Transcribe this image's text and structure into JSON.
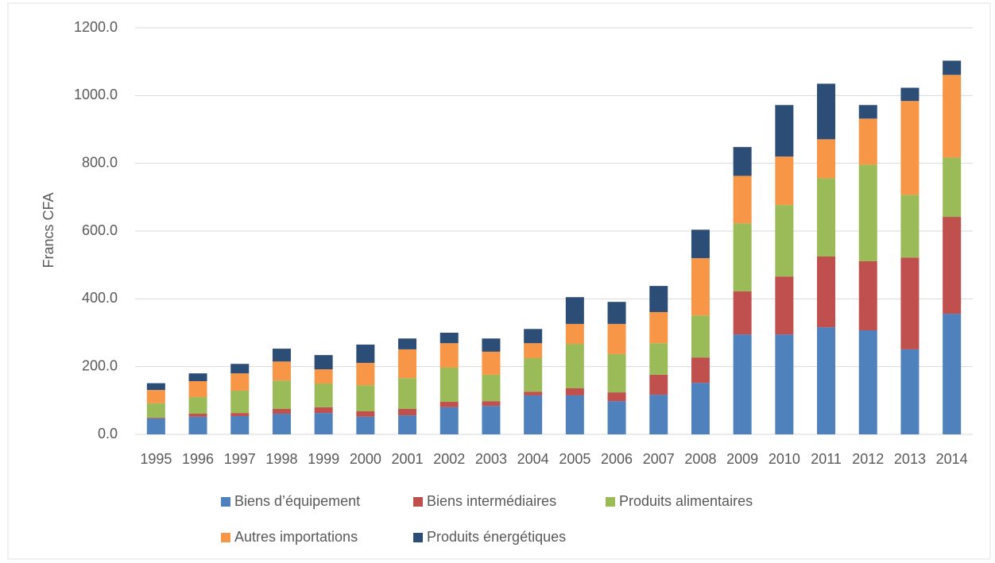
{
  "chart_data": {
    "type": "stacked-bar",
    "y_label": "Francs CFA",
    "categories": [
      "1995",
      "1996",
      "1997",
      "1998",
      "1999",
      "2000",
      "2001",
      "2002",
      "2003",
      "2004",
      "2005",
      "2006",
      "2007",
      "2008",
      "2009",
      "2010",
      "2011",
      "2012",
      "2013",
      "2014"
    ],
    "series": [
      {
        "name": "Biens d’équipement",
        "color": "#4f81bd",
        "values": [
          47,
          52,
          54,
          61,
          63,
          52,
          56,
          80,
          84,
          115,
          115,
          98,
          117,
          152,
          295,
          295,
          316,
          307,
          251,
          356
        ]
      },
      {
        "name": "Biens intermédiaires",
        "color": "#c0504d",
        "values": [
          2,
          9,
          9,
          14,
          17,
          16,
          19,
          16,
          14,
          11,
          21,
          26,
          59,
          75,
          127,
          171,
          209,
          204,
          271,
          286
        ]
      },
      {
        "name": "Produits alimentaires",
        "color": "#9bbb59",
        "values": [
          43,
          49,
          66,
          84,
          70,
          77,
          91,
          101,
          78,
          99,
          131,
          113,
          93,
          124,
          201,
          211,
          231,
          285,
          185,
          175
        ]
      },
      {
        "name": "Autres importations",
        "color": "#f79646",
        "values": [
          39,
          47,
          51,
          56,
          42,
          66,
          85,
          72,
          68,
          44,
          59,
          89,
          92,
          169,
          140,
          143,
          115,
          136,
          277,
          244
        ]
      },
      {
        "name": "Produits énergétiques",
        "color": "#2c4d75",
        "values": [
          20,
          23,
          28,
          38,
          42,
          54,
          32,
          31,
          39,
          42,
          79,
          65,
          77,
          84,
          85,
          152,
          164,
          40,
          39,
          42
        ]
      }
    ],
    "ylim": [
      0,
      1200
    ],
    "yticks": [
      {
        "value": 0,
        "label": "0.0"
      },
      {
        "value": 200,
        "label": "200.0"
      },
      {
        "value": 400,
        "label": "400.0"
      },
      {
        "value": 600,
        "label": "600.0"
      },
      {
        "value": 800,
        "label": "800.0"
      },
      {
        "value": 1000,
        "label": "1000.0"
      },
      {
        "value": 1200,
        "label": "1200.0"
      }
    ],
    "grid": true
  }
}
